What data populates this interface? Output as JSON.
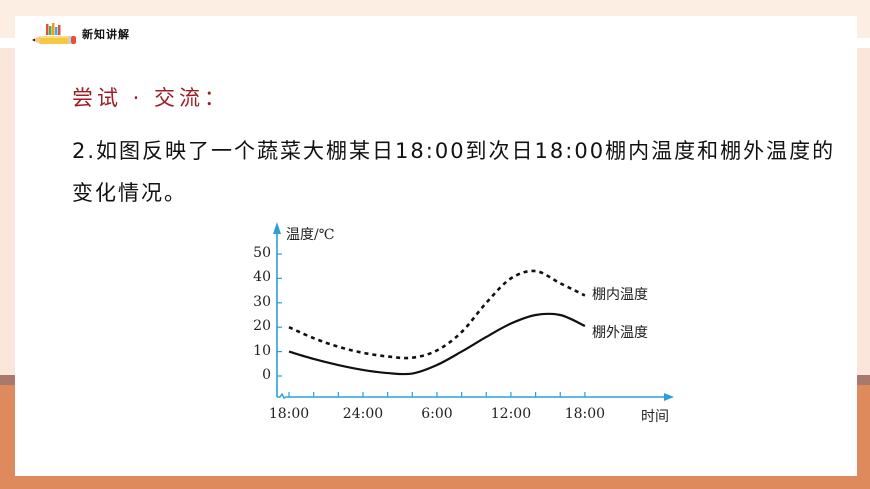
{
  "header": {
    "title": "新知讲解",
    "icon": "pencil-icon"
  },
  "section_title": "尝试 · 交流：",
  "question": "2.如图反映了一个蔬菜大棚某日18:00到次日18:00棚内温度和棚外温度的变化情况。",
  "colors": {
    "frame_peach": "#fbe6dc",
    "frame_orange": "#df8a5d",
    "section_title": "#9e1c25",
    "axis": "#2aa0d6",
    "curve": "#111111"
  },
  "chart_data": {
    "type": "line",
    "title": "",
    "ylabel": "温度/℃",
    "xlabel": "时间",
    "ylim": [
      0,
      50
    ],
    "yticks": [
      "50",
      "40",
      "30",
      "20",
      "10",
      "0"
    ],
    "xticks": [
      "18:00",
      "24:00",
      "6:00",
      "12:00",
      "18:00"
    ],
    "x_hours_from_start": [
      0,
      2,
      4,
      6,
      8,
      10,
      12,
      14,
      16,
      18,
      20,
      22,
      24
    ],
    "x": [
      "18:00",
      "20:00",
      "22:00",
      "24:00",
      "2:00",
      "4:00",
      "6:00",
      "8:00",
      "10:00",
      "12:00",
      "14:00",
      "16:00",
      "18:00"
    ],
    "series": [
      {
        "name": "棚内温度",
        "style": "dashed",
        "values": [
          20,
          15.5,
          12,
          9.5,
          8,
          7.5,
          10.5,
          18,
          30,
          40,
          43,
          38,
          33
        ]
      },
      {
        "name": "棚外温度",
        "style": "solid",
        "values": [
          10,
          7,
          4.5,
          2.5,
          1.2,
          1,
          4.5,
          10,
          16,
          21.5,
          25,
          25,
          20.5
        ]
      }
    ],
    "legend_position": "right-of-line-ends",
    "grid": false
  }
}
